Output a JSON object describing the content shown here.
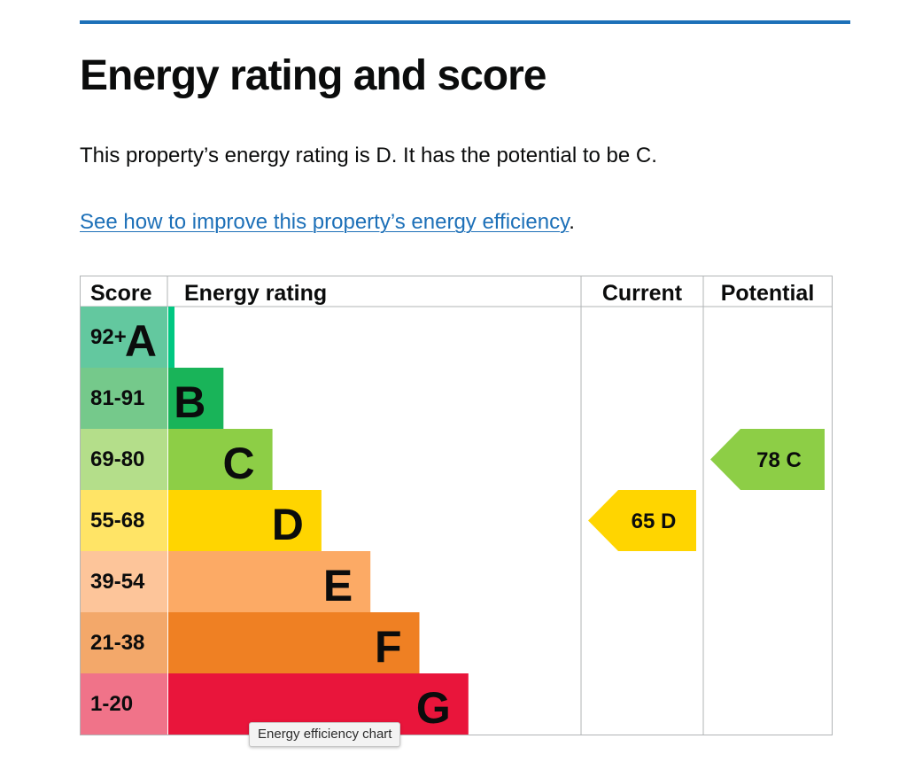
{
  "heading": "Energy rating and score",
  "intro": "This property’s energy rating is D. It has the potential to be C.",
  "improve_link": "See how to improve this property’s energy efficiency",
  "improve_suffix": ".",
  "tooltip": "Energy efficiency chart",
  "colors": {
    "accent": "#1d70b8"
  },
  "chart_data": {
    "type": "bar",
    "headers": {
      "score": "Score",
      "rating": "Energy rating",
      "current": "Current",
      "potential": "Potential"
    },
    "bands": [
      {
        "letter": "A",
        "range": "92+",
        "color": "#00c781",
        "score_bg": "#63c89f"
      },
      {
        "letter": "B",
        "range": "81-91",
        "color": "#19b459",
        "score_bg": "#75c98b"
      },
      {
        "letter": "C",
        "range": "69-80",
        "color": "#8dce46",
        "score_bg": "#b4de8a"
      },
      {
        "letter": "D",
        "range": "55-68",
        "color": "#ffd500",
        "score_bg": "#ffe466"
      },
      {
        "letter": "E",
        "range": "39-54",
        "color": "#fcaa65",
        "score_bg": "#fdc59a"
      },
      {
        "letter": "F",
        "range": "21-38",
        "color": "#ef8023",
        "score_bg": "#f3a86a"
      },
      {
        "letter": "G",
        "range": "1-20",
        "color": "#e9153b",
        "score_bg": "#f07389"
      }
    ],
    "current": {
      "score": 65,
      "letter": "D",
      "label": "65  D"
    },
    "potential": {
      "score": 78,
      "letter": "C",
      "label": "78  C"
    }
  }
}
